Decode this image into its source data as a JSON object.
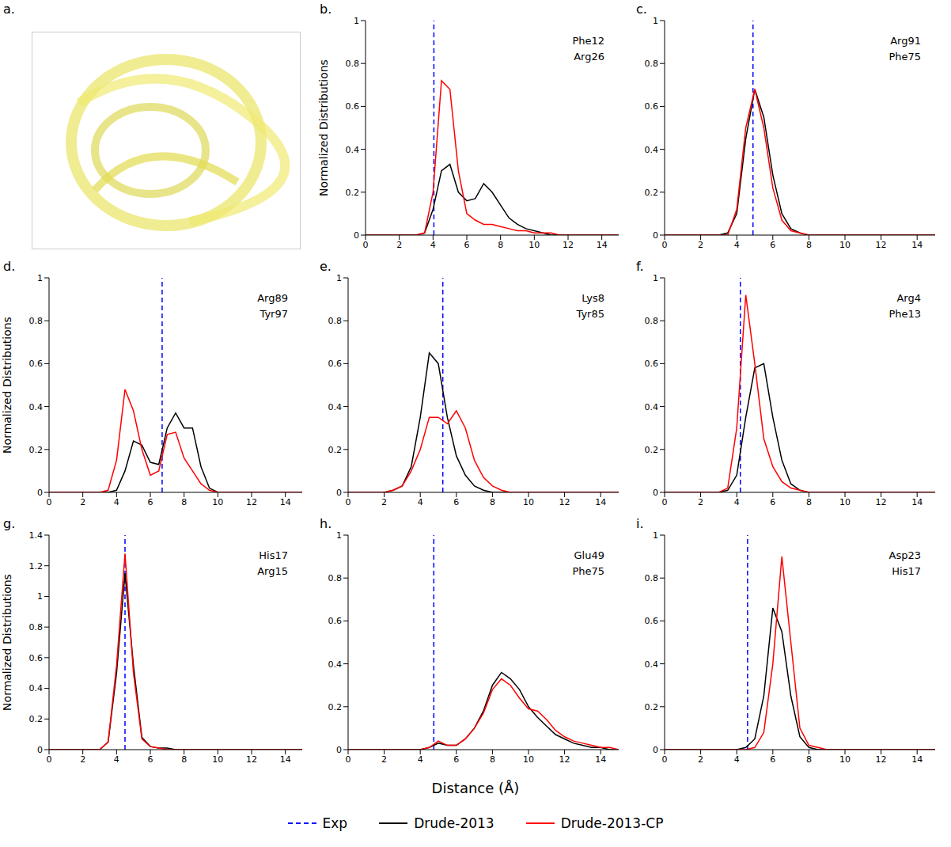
{
  "panel_a": {
    "title": "a."
  },
  "y_label": "Normalized Distributions",
  "x_label": "Distance (Å)",
  "legend": "bottom",
  "chart_data": [
    {
      "type": "line",
      "title": "b.",
      "annotations": [
        "Phe12",
        "Arg26"
      ],
      "x": [
        0,
        0.5,
        1,
        1.5,
        2,
        2.5,
        3,
        3.5,
        4,
        4.5,
        5,
        5.5,
        6,
        6.5,
        7,
        7.5,
        8,
        8.5,
        9,
        9.5,
        10,
        10.5,
        11,
        11.5,
        12,
        12.5,
        13,
        13.5,
        14,
        14.5,
        15
      ],
      "xlim": [
        0,
        15
      ],
      "xticks": [
        0,
        2,
        4,
        6,
        8,
        10,
        12,
        14
      ],
      "ylim": [
        0,
        1
      ],
      "yticks": [
        0,
        0.2,
        0.4,
        0.6,
        0.8,
        1
      ],
      "exp": {
        "name": "Exp",
        "value": 4.05,
        "color": "#0000ff",
        "line_style": "dashed"
      },
      "series": [
        {
          "name": "Drude-2013",
          "color": "#000000",
          "values": [
            0,
            0,
            0,
            0,
            0,
            0,
            0,
            0.01,
            0.12,
            0.3,
            0.33,
            0.2,
            0.16,
            0.17,
            0.24,
            0.2,
            0.14,
            0.08,
            0.05,
            0.03,
            0.02,
            0.01,
            0,
            0,
            0,
            0,
            0,
            0,
            0,
            0,
            0
          ]
        },
        {
          "name": "Drude-2013-CP",
          "color": "#ff0000",
          "values": [
            0,
            0,
            0,
            0,
            0,
            0,
            0,
            0.01,
            0.2,
            0.72,
            0.68,
            0.3,
            0.1,
            0.07,
            0.05,
            0.05,
            0.04,
            0.03,
            0.02,
            0.02,
            0.01,
            0.01,
            0.01,
            0,
            0,
            0,
            0,
            0,
            0,
            0,
            0
          ]
        }
      ]
    },
    {
      "type": "line",
      "title": "c.",
      "annotations": [
        "Arg91",
        "Phe75"
      ],
      "x": [
        0,
        0.5,
        1,
        1.5,
        2,
        2.5,
        3,
        3.5,
        4,
        4.5,
        5,
        5.5,
        6,
        6.5,
        7,
        7.5,
        8,
        8.5,
        9,
        9.5,
        10,
        10.5,
        11,
        11.5,
        12,
        12.5,
        13,
        13.5,
        14,
        14.5,
        15
      ],
      "xlim": [
        0,
        15
      ],
      "xticks": [
        0,
        2,
        4,
        6,
        8,
        10,
        12,
        14
      ],
      "ylim": [
        0,
        1
      ],
      "yticks": [
        0,
        0.2,
        0.4,
        0.6,
        0.8,
        1
      ],
      "exp": {
        "name": "Exp",
        "value": 4.9,
        "color": "#0000ff",
        "line_style": "dashed"
      },
      "series": [
        {
          "name": "Drude-2013",
          "color": "#000000",
          "values": [
            0,
            0,
            0,
            0,
            0,
            0,
            0,
            0.01,
            0.1,
            0.45,
            0.68,
            0.55,
            0.28,
            0.1,
            0.03,
            0.01,
            0,
            0,
            0,
            0,
            0,
            0,
            0,
            0,
            0,
            0,
            0,
            0,
            0,
            0,
            0
          ]
        },
        {
          "name": "Drude-2013-CP",
          "color": "#ff0000",
          "values": [
            0,
            0,
            0,
            0,
            0,
            0,
            0,
            0,
            0.12,
            0.5,
            0.68,
            0.5,
            0.22,
            0.07,
            0.02,
            0.01,
            0,
            0,
            0,
            0,
            0,
            0,
            0,
            0,
            0,
            0,
            0,
            0,
            0,
            0,
            0
          ]
        }
      ]
    },
    {
      "type": "line",
      "title": "d.",
      "annotations": [
        "Arg89",
        "Tyr97"
      ],
      "x": [
        0,
        0.5,
        1,
        1.5,
        2,
        2.5,
        3,
        3.5,
        4,
        4.5,
        5,
        5.5,
        6,
        6.5,
        7,
        7.5,
        8,
        8.5,
        9,
        9.5,
        10,
        10.5,
        11,
        11.5,
        12,
        12.5,
        13,
        13.5,
        14,
        14.5,
        15
      ],
      "xlim": [
        0,
        15
      ],
      "xticks": [
        0,
        2,
        4,
        6,
        8,
        10,
        12,
        14
      ],
      "ylim": [
        0,
        1
      ],
      "yticks": [
        0,
        0.2,
        0.4,
        0.6,
        0.8,
        1
      ],
      "exp": {
        "name": "Exp",
        "value": 6.7,
        "color": "#0000ff",
        "line_style": "dashed"
      },
      "series": [
        {
          "name": "Drude-2013",
          "color": "#000000",
          "values": [
            0,
            0,
            0,
            0,
            0,
            0,
            0,
            0,
            0.01,
            0.1,
            0.24,
            0.22,
            0.14,
            0.13,
            0.3,
            0.37,
            0.3,
            0.3,
            0.12,
            0.02,
            0,
            0,
            0,
            0,
            0,
            0,
            0,
            0,
            0,
            0,
            0
          ]
        },
        {
          "name": "Drude-2013-CP",
          "color": "#ff0000",
          "values": [
            0,
            0,
            0,
            0,
            0,
            0,
            0,
            0.01,
            0.15,
            0.48,
            0.38,
            0.2,
            0.08,
            0.1,
            0.27,
            0.28,
            0.16,
            0.1,
            0.04,
            0.01,
            0,
            0,
            0,
            0,
            0,
            0,
            0,
            0,
            0,
            0,
            0
          ]
        }
      ]
    },
    {
      "type": "line",
      "title": "e.",
      "annotations": [
        "Lys8",
        "Tyr85"
      ],
      "x": [
        0,
        0.5,
        1,
        1.5,
        2,
        2.5,
        3,
        3.5,
        4,
        4.5,
        5,
        5.5,
        6,
        6.5,
        7,
        7.5,
        8,
        8.5,
        9,
        9.5,
        10,
        10.5,
        11,
        11.5,
        12,
        12.5,
        13,
        13.5,
        14,
        14.5,
        15
      ],
      "xlim": [
        0,
        15
      ],
      "xticks": [
        0,
        2,
        4,
        6,
        8,
        10,
        12,
        14
      ],
      "ylim": [
        0,
        1
      ],
      "yticks": [
        0,
        0.2,
        0.4,
        0.6,
        0.8,
        1
      ],
      "exp": {
        "name": "Exp",
        "value": 5.25,
        "color": "#0000ff",
        "line_style": "dashed"
      },
      "series": [
        {
          "name": "Drude-2013",
          "color": "#000000",
          "values": [
            0,
            0,
            0,
            0,
            0,
            0.01,
            0.03,
            0.12,
            0.35,
            0.65,
            0.6,
            0.35,
            0.17,
            0.08,
            0.03,
            0.01,
            0,
            0,
            0,
            0,
            0,
            0,
            0,
            0,
            0,
            0,
            0,
            0,
            0,
            0,
            0
          ]
        },
        {
          "name": "Drude-2013-CP",
          "color": "#ff0000",
          "values": [
            0,
            0,
            0,
            0,
            0,
            0.01,
            0.03,
            0.1,
            0.2,
            0.35,
            0.35,
            0.32,
            0.38,
            0.3,
            0.15,
            0.07,
            0.03,
            0.01,
            0,
            0,
            0,
            0,
            0,
            0,
            0,
            0,
            0,
            0,
            0,
            0,
            0
          ]
        }
      ]
    },
    {
      "type": "line",
      "title": "f.",
      "annotations": [
        "Arg4",
        "Phe13"
      ],
      "x": [
        0,
        0.5,
        1,
        1.5,
        2,
        2.5,
        3,
        3.5,
        4,
        4.5,
        5,
        5.5,
        6,
        6.5,
        7,
        7.5,
        8,
        8.5,
        9,
        9.5,
        10,
        10.5,
        11,
        11.5,
        12,
        12.5,
        13,
        13.5,
        14,
        14.5,
        15
      ],
      "xlim": [
        0,
        15
      ],
      "xticks": [
        0,
        2,
        4,
        6,
        8,
        10,
        12,
        14
      ],
      "ylim": [
        0,
        1
      ],
      "yticks": [
        0,
        0.2,
        0.4,
        0.6,
        0.8,
        1
      ],
      "exp": {
        "name": "Exp",
        "value": 4.2,
        "color": "#0000ff",
        "line_style": "dashed"
      },
      "series": [
        {
          "name": "Drude-2013",
          "color": "#000000",
          "values": [
            0,
            0,
            0,
            0,
            0,
            0,
            0,
            0.01,
            0.08,
            0.35,
            0.58,
            0.6,
            0.35,
            0.15,
            0.04,
            0.01,
            0,
            0,
            0,
            0,
            0,
            0,
            0,
            0,
            0,
            0,
            0,
            0,
            0,
            0,
            0
          ]
        },
        {
          "name": "Drude-2013-CP",
          "color": "#ff0000",
          "values": [
            0,
            0,
            0,
            0,
            0,
            0,
            0,
            0.02,
            0.3,
            0.92,
            0.6,
            0.25,
            0.12,
            0.05,
            0.02,
            0.01,
            0,
            0,
            0,
            0,
            0,
            0,
            0,
            0,
            0,
            0,
            0,
            0,
            0,
            0,
            0
          ]
        }
      ]
    },
    {
      "type": "line",
      "title": "g.",
      "annotations": [
        "His17",
        "Arg15"
      ],
      "x": [
        0,
        0.5,
        1,
        1.5,
        2,
        2.5,
        3,
        3.5,
        4,
        4.5,
        5,
        5.5,
        6,
        6.5,
        7,
        7.5,
        8,
        8.5,
        9,
        9.5,
        10,
        10.5,
        11,
        11.5,
        12,
        12.5,
        13,
        13.5,
        14,
        14.5,
        15
      ],
      "xlim": [
        0,
        15
      ],
      "xticks": [
        0,
        2,
        4,
        6,
        8,
        10,
        12,
        14
      ],
      "ylim": [
        0,
        1.4
      ],
      "yticks": [
        0,
        0.2,
        0.4,
        0.6,
        0.8,
        1,
        1.2,
        1.4
      ],
      "exp": {
        "name": "Exp",
        "value": 4.5,
        "color": "#0000ff",
        "line_style": "dashed"
      },
      "series": [
        {
          "name": "Drude-2013",
          "color": "#000000",
          "values": [
            0,
            0,
            0,
            0,
            0,
            0,
            0,
            0.05,
            0.5,
            1.15,
            0.55,
            0.08,
            0.02,
            0.01,
            0.01,
            0,
            0,
            0,
            0,
            0,
            0,
            0,
            0,
            0,
            0,
            0,
            0,
            0,
            0,
            0,
            0
          ]
        },
        {
          "name": "Drude-2013-CP",
          "color": "#ff0000",
          "values": [
            0,
            0,
            0,
            0,
            0,
            0,
            0,
            0.05,
            0.55,
            1.28,
            0.5,
            0.07,
            0.02,
            0.01,
            0,
            0,
            0,
            0,
            0,
            0,
            0,
            0,
            0,
            0,
            0,
            0,
            0,
            0,
            0,
            0,
            0
          ]
        }
      ]
    },
    {
      "type": "line",
      "title": "h.",
      "annotations": [
        "Glu49",
        "Phe75"
      ],
      "x": [
        0,
        0.5,
        1,
        1.5,
        2,
        2.5,
        3,
        3.5,
        4,
        4.5,
        5,
        5.5,
        6,
        6.5,
        7,
        7.5,
        8,
        8.5,
        9,
        9.5,
        10,
        10.5,
        11,
        11.5,
        12,
        12.5,
        13,
        13.5,
        14,
        14.5,
        15
      ],
      "xlim": [
        0,
        15
      ],
      "xticks": [
        0,
        2,
        4,
        6,
        8,
        10,
        12,
        14
      ],
      "ylim": [
        0,
        1
      ],
      "yticks": [
        0,
        0.2,
        0.4,
        0.6,
        0.8,
        1
      ],
      "exp": {
        "name": "Exp",
        "value": 4.75,
        "color": "#0000ff",
        "line_style": "dashed"
      },
      "series": [
        {
          "name": "Drude-2013",
          "color": "#000000",
          "values": [
            0,
            0,
            0,
            0,
            0,
            0,
            0,
            0,
            0,
            0.01,
            0.03,
            0.02,
            0.02,
            0.05,
            0.1,
            0.18,
            0.3,
            0.36,
            0.33,
            0.28,
            0.2,
            0.15,
            0.11,
            0.07,
            0.05,
            0.03,
            0.02,
            0.01,
            0.01,
            0,
            0
          ]
        },
        {
          "name": "Drude-2013-CP",
          "color": "#ff0000",
          "values": [
            0,
            0,
            0,
            0,
            0,
            0,
            0,
            0,
            0,
            0.01,
            0.04,
            0.02,
            0.02,
            0.05,
            0.1,
            0.17,
            0.28,
            0.33,
            0.3,
            0.24,
            0.19,
            0.18,
            0.14,
            0.09,
            0.06,
            0.04,
            0.03,
            0.02,
            0.01,
            0.01,
            0
          ]
        }
      ]
    },
    {
      "type": "line",
      "title": "i.",
      "annotations": [
        "Asp23",
        "His17"
      ],
      "x": [
        0,
        0.5,
        1,
        1.5,
        2,
        2.5,
        3,
        3.5,
        4,
        4.5,
        5,
        5.5,
        6,
        6.5,
        7,
        7.5,
        8,
        8.5,
        9,
        9.5,
        10,
        10.5,
        11,
        11.5,
        12,
        12.5,
        13,
        13.5,
        14,
        14.5,
        15
      ],
      "xlim": [
        0,
        15
      ],
      "xticks": [
        0,
        2,
        4,
        6,
        8,
        10,
        12,
        14
      ],
      "ylim": [
        0,
        1
      ],
      "yticks": [
        0,
        0.2,
        0.4,
        0.6,
        0.8,
        1
      ],
      "exp": {
        "name": "Exp",
        "value": 4.6,
        "color": "#0000ff",
        "line_style": "dashed"
      },
      "series": [
        {
          "name": "Drude-2013",
          "color": "#000000",
          "values": [
            0,
            0,
            0,
            0,
            0,
            0,
            0,
            0,
            0,
            0.01,
            0.05,
            0.25,
            0.66,
            0.55,
            0.25,
            0.06,
            0.01,
            0,
            0,
            0,
            0,
            0,
            0,
            0,
            0,
            0,
            0,
            0,
            0,
            0,
            0
          ]
        },
        {
          "name": "Drude-2013-CP",
          "color": "#ff0000",
          "values": [
            0,
            0,
            0,
            0,
            0,
            0,
            0,
            0,
            0,
            0,
            0.01,
            0.08,
            0.4,
            0.9,
            0.5,
            0.1,
            0.02,
            0.01,
            0,
            0,
            0,
            0,
            0,
            0,
            0,
            0,
            0,
            0,
            0,
            0,
            0
          ]
        }
      ]
    }
  ]
}
